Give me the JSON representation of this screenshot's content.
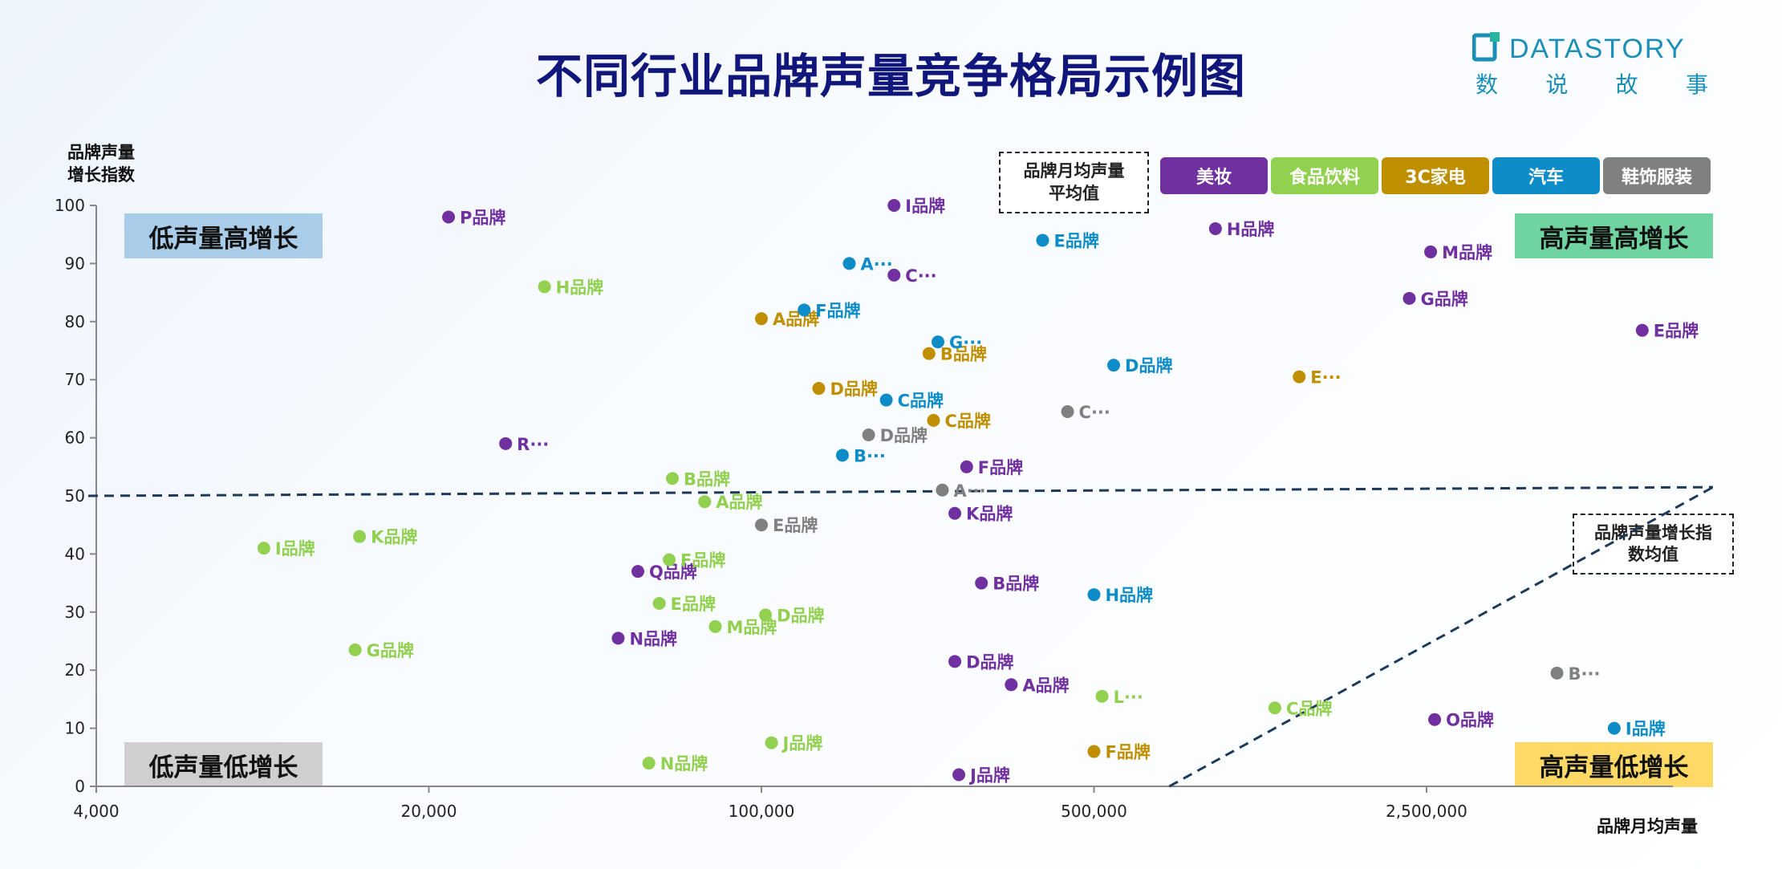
{
  "page": {
    "title": "不同行业品牌声量竞争格局示例图",
    "logo": {
      "word": "DATASTORY",
      "cn": [
        "数",
        "说",
        "故",
        "事"
      ]
    },
    "avg_volume_note": "品牌月均声量\n平均值",
    "avg_growth_note": "品牌声量增长指\n数均值"
  },
  "colors": {
    "美妆": "#7030a0",
    "食品饮料": "#92d050",
    "3C家电": "#bf8f00",
    "汽车": "#0e8cc8",
    "鞋饰服装": "#808080"
  },
  "legend": [
    {
      "label": "美妆",
      "color": "#7030a0"
    },
    {
      "label": "食品饮料",
      "color": "#92d050"
    },
    {
      "label": "3C家电",
      "color": "#bf8f00"
    },
    {
      "label": "汽车",
      "color": "#0e8cc8"
    },
    {
      "label": "鞋饰服装",
      "color": "#808080"
    }
  ],
  "quadrants": {
    "top_left": {
      "label": "低声量高增长",
      "color": "#a9cce8"
    },
    "top_right": {
      "label": "高声量高增长",
      "color": "#6fd4a0"
    },
    "bottom_left": {
      "label": "低声量低增长",
      "color": "#cfcfcf"
    },
    "bottom_right": {
      "label": "高声量低增长",
      "color": "#ffd966"
    }
  },
  "chart_data": {
    "type": "scatter",
    "title": "不同行业品牌声量竞争格局示例图",
    "xlabel": "品牌月均声量",
    "ylabel": "品牌声量\n增长指数",
    "x_scale": "log",
    "xlim": [
      4000,
      10000000
    ],
    "ylim": [
      0,
      100
    ],
    "x_ticks": [
      {
        "value": 4000,
        "label": "4,000"
      },
      {
        "value": 20000,
        "label": "20,000"
      },
      {
        "value": 100000,
        "label": "100,000"
      },
      {
        "value": 500000,
        "label": "500,000"
      },
      {
        "value": 2500000,
        "label": "2,500,000"
      }
    ],
    "y_ticks": [
      0,
      10,
      20,
      30,
      40,
      50,
      60,
      70,
      80,
      90,
      100
    ],
    "growth_avg_line": {
      "y_start": 50,
      "y_end": 51.5
    },
    "volume_avg_line": {
      "x_start": 720000,
      "y_start": 0,
      "y_end": 51.5
    },
    "series": [
      {
        "name": "美妆",
        "points": [
          {
            "label": "P品牌",
            "x": 22000,
            "y": 98
          },
          {
            "label": "I品牌",
            "x": 190000,
            "y": 100
          },
          {
            "label": "C···",
            "x": 190000,
            "y": 88
          },
          {
            "label": "H品牌",
            "x": 900000,
            "y": 96
          },
          {
            "label": "M品牌",
            "x": 2550000,
            "y": 92
          },
          {
            "label": "G品牌",
            "x": 2300000,
            "y": 84
          },
          {
            "label": "E品牌",
            "x": 7100000,
            "y": 78.5
          },
          {
            "label": "R···",
            "x": 29000,
            "y": 59
          },
          {
            "label": "F品牌",
            "x": 270000,
            "y": 55
          },
          {
            "label": "K品牌",
            "x": 255000,
            "y": 47
          },
          {
            "label": "Q品牌",
            "x": 55000,
            "y": 37
          },
          {
            "label": "B品牌",
            "x": 290000,
            "y": 35
          },
          {
            "label": "N品牌",
            "x": 50000,
            "y": 25.5
          },
          {
            "label": "D品牌",
            "x": 255000,
            "y": 21.5
          },
          {
            "label": "A品牌",
            "x": 335000,
            "y": 17.5
          },
          {
            "label": "O品牌",
            "x": 2600000,
            "y": 11.5
          },
          {
            "label": "J品牌",
            "x": 260000,
            "y": 2
          }
        ]
      },
      {
        "name": "食品饮料",
        "points": [
          {
            "label": "H品牌",
            "x": 35000,
            "y": 86
          },
          {
            "label": "B品牌",
            "x": 65000,
            "y": 53
          },
          {
            "label": "A品牌",
            "x": 76000,
            "y": 49
          },
          {
            "label": "I品牌",
            "x": 9000,
            "y": 41
          },
          {
            "label": "K品牌",
            "x": 14300,
            "y": 43
          },
          {
            "label": "F品牌",
            "x": 64000,
            "y": 39
          },
          {
            "label": "E品牌",
            "x": 61000,
            "y": 31.5
          },
          {
            "label": "M品牌",
            "x": 80000,
            "y": 27.5
          },
          {
            "label": "D品牌",
            "x": 102000,
            "y": 29.5
          },
          {
            "label": "G品牌",
            "x": 14000,
            "y": 23.5
          },
          {
            "label": "L···",
            "x": 520000,
            "y": 15.5
          },
          {
            "label": "C品牌",
            "x": 1200000,
            "y": 13.5
          },
          {
            "label": "J品牌",
            "x": 105000,
            "y": 7.5
          },
          {
            "label": "N品牌",
            "x": 58000,
            "y": 4
          }
        ]
      },
      {
        "name": "3C家电",
        "points": [
          {
            "label": "A品牌",
            "x": 100000,
            "y": 80.5
          },
          {
            "label": "B品牌",
            "x": 225000,
            "y": 74.5
          },
          {
            "label": "D品牌",
            "x": 132000,
            "y": 68.5
          },
          {
            "label": "C品牌",
            "x": 230000,
            "y": 63
          },
          {
            "label": "E···",
            "x": 1350000,
            "y": 70.5
          },
          {
            "label": "F品牌",
            "x": 500000,
            "y": 6
          }
        ]
      },
      {
        "name": "汽车",
        "points": [
          {
            "label": "E品牌",
            "x": 390000,
            "y": 94
          },
          {
            "label": "A···",
            "x": 153000,
            "y": 90
          },
          {
            "label": "F品牌",
            "x": 123000,
            "y": 82
          },
          {
            "label": "G···",
            "x": 235000,
            "y": 76.5
          },
          {
            "label": "D品牌",
            "x": 550000,
            "y": 72.5
          },
          {
            "label": "C品牌",
            "x": 183000,
            "y": 66.5
          },
          {
            "label": "B···",
            "x": 148000,
            "y": 57
          },
          {
            "label": "H品牌",
            "x": 500000,
            "y": 33
          },
          {
            "label": "I品牌",
            "x": 6200000,
            "y": 10
          }
        ]
      },
      {
        "name": "鞋饰服装",
        "points": [
          {
            "label": "C···",
            "x": 440000,
            "y": 64.5
          },
          {
            "label": "D品牌",
            "x": 168000,
            "y": 60.5
          },
          {
            "label": "A···",
            "x": 240000,
            "y": 51
          },
          {
            "label": "E品牌",
            "x": 100000,
            "y": 45
          },
          {
            "label": "B···",
            "x": 4700000,
            "y": 19.5
          }
        ]
      }
    ]
  }
}
